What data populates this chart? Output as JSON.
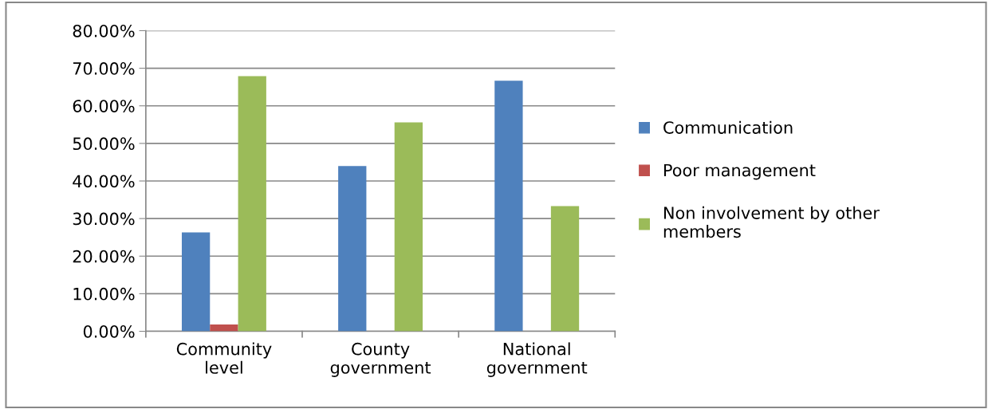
{
  "chart_data": {
    "type": "bar",
    "categories": [
      "Community\nlevel",
      "County\ngovernment",
      "National\ngovernment"
    ],
    "series": [
      {
        "name": "Communication",
        "color": "#4f81bd",
        "values": [
          26.3,
          44.0,
          66.7
        ]
      },
      {
        "name": "Poor management",
        "color": "#c0504d",
        "values": [
          1.8,
          0,
          0
        ]
      },
      {
        "name": "Non involvement by other\nmembers",
        "color": "#9bbb59",
        "values": [
          67.9,
          55.6,
          33.3
        ]
      }
    ],
    "ylim": [
      0,
      80
    ],
    "yticks": [
      {
        "value": 0,
        "label": "0.00%"
      },
      {
        "value": 10,
        "label": "10.00%"
      },
      {
        "value": 20,
        "label": "20.00%"
      },
      {
        "value": 30,
        "label": "30.00%"
      },
      {
        "value": 40,
        "label": "40.00%"
      },
      {
        "value": 50,
        "label": "50.00%"
      },
      {
        "value": 60,
        "label": "60.00%"
      },
      {
        "value": 70,
        "label": "70.00%"
      },
      {
        "value": 80,
        "label": "80.00%"
      }
    ],
    "grid": "y",
    "legend": "right"
  }
}
